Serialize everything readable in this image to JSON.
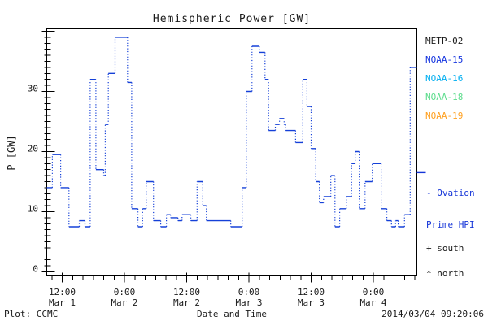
{
  "footer": {
    "plot_source": "Plot: CCMC",
    "timestamp": "2014/03/04 09:20:06"
  },
  "annotations": {
    "ovation_line1": "- Ovation",
    "ovation_line2": "Prime HPI",
    "ovation_marker_value_gw": 16.5,
    "ovation_color": "#1535D8",
    "south_marker": "+ south",
    "north_marker": "* north"
  },
  "chart_data": {
    "type": "line",
    "subtype": "step",
    "title": "Hemispheric Power [GW]",
    "xlabel": "Date and Time",
    "ylabel": "P [GW]",
    "x_unit": "hours since 2014-03-01 00:00",
    "xlim": [
      9.0,
      80.5
    ],
    "ylim": [
      0,
      40.5
    ],
    "grid": false,
    "legend_position": "right-outside",
    "legend_entries": [
      {
        "label": "METP-02",
        "color": "#1a1a1a"
      },
      {
        "label": "NOAA-15",
        "color": "#1535E0"
      },
      {
        "label": "NOAA-16",
        "color": "#00AEF0"
      },
      {
        "label": "NOAA-18",
        "color": "#5CDC8C"
      },
      {
        "label": "NOAA-19",
        "color": "#FFA020"
      }
    ],
    "yticks": [
      0,
      10,
      20,
      30
    ],
    "minor_ytick_gw": 1,
    "minor_xtick_hours": 2,
    "xticks": [
      {
        "hour": 12,
        "time": "12:00",
        "date": "Mar 1"
      },
      {
        "hour": 24,
        "time": "0:00",
        "date": "Mar 2"
      },
      {
        "hour": 36,
        "time": "12:00",
        "date": "Mar 2"
      },
      {
        "hour": 48,
        "time": "0:00",
        "date": "Mar 3"
      },
      {
        "hour": 60,
        "time": "12:00",
        "date": "Mar 3"
      },
      {
        "hour": 72,
        "time": "0:00",
        "date": "Mar 4"
      }
    ],
    "series": [
      {
        "name": "Hemispheric power (satellite passes)",
        "color": "#1540D8",
        "t_end": 80.5,
        "steps": [
          [
            8.7,
            14.0
          ],
          [
            10.1,
            19.5
          ],
          [
            11.7,
            14.0
          ],
          [
            13.3,
            7.5
          ],
          [
            15.3,
            8.5
          ],
          [
            16.4,
            7.5
          ],
          [
            17.4,
            32.0
          ],
          [
            18.5,
            17.0
          ],
          [
            20.0,
            16.0
          ],
          [
            20.3,
            24.5
          ],
          [
            20.9,
            33.0
          ],
          [
            22.2,
            39.0
          ],
          [
            24.6,
            31.5
          ],
          [
            25.4,
            10.5
          ],
          [
            26.6,
            7.5
          ],
          [
            27.5,
            10.5
          ],
          [
            28.2,
            15.0
          ],
          [
            29.6,
            8.5
          ],
          [
            31.0,
            7.5
          ],
          [
            32.1,
            9.5
          ],
          [
            32.9,
            9.0
          ],
          [
            34.3,
            8.5
          ],
          [
            35.1,
            9.5
          ],
          [
            36.8,
            8.5
          ],
          [
            38.0,
            15.0
          ],
          [
            39.1,
            11.0
          ],
          [
            39.8,
            8.5
          ],
          [
            44.5,
            7.5
          ],
          [
            46.7,
            14.0
          ],
          [
            47.5,
            30.0
          ],
          [
            48.6,
            37.5
          ],
          [
            50.0,
            36.5
          ],
          [
            51.1,
            32.0
          ],
          [
            51.8,
            23.5
          ],
          [
            53.1,
            24.5
          ],
          [
            53.9,
            25.5
          ],
          [
            54.8,
            24.5
          ],
          [
            55.1,
            23.5
          ],
          [
            57.0,
            21.5
          ],
          [
            58.4,
            32.0
          ],
          [
            59.2,
            27.5
          ],
          [
            60.0,
            20.5
          ],
          [
            60.9,
            15.0
          ],
          [
            61.6,
            11.5
          ],
          [
            62.4,
            12.5
          ],
          [
            63.8,
            16.0
          ],
          [
            64.6,
            7.5
          ],
          [
            65.5,
            10.5
          ],
          [
            66.8,
            12.5
          ],
          [
            67.8,
            18.0
          ],
          [
            68.5,
            20.0
          ],
          [
            69.4,
            10.5
          ],
          [
            70.4,
            15.0
          ],
          [
            71.8,
            18.0
          ],
          [
            73.5,
            10.5
          ],
          [
            74.6,
            8.5
          ],
          [
            75.5,
            7.5
          ],
          [
            76.3,
            8.5
          ],
          [
            76.8,
            7.5
          ],
          [
            78.0,
            9.5
          ],
          [
            79.1,
            34.0
          ]
        ]
      }
    ]
  }
}
